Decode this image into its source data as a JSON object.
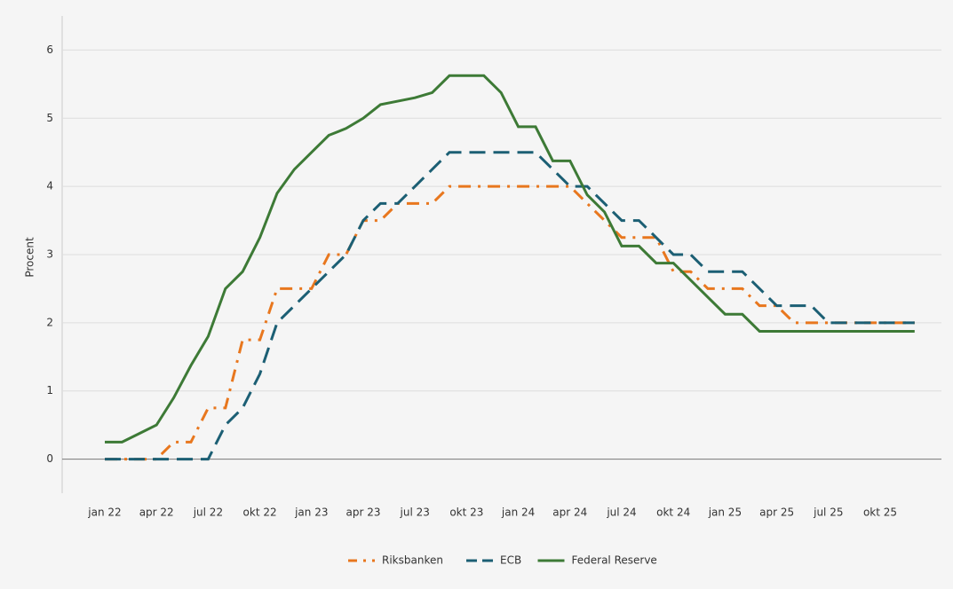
{
  "chart_data": {
    "type": "line",
    "y_label": "Procent",
    "categories": [
      "jan 22",
      null,
      null,
      "apr 22",
      null,
      null,
      "jul 22",
      null,
      null,
      "okt 22",
      null,
      null,
      "jan 23",
      null,
      null,
      "apr 23",
      null,
      null,
      "jul 23",
      null,
      null,
      "okt 23",
      null,
      null,
      "jan 24",
      null,
      null,
      "apr 24",
      null,
      null,
      "jul 24",
      null,
      null,
      "okt 24",
      null,
      null,
      "jan 25",
      null,
      null,
      "apr 25",
      null,
      null,
      "jul 25",
      null,
      null,
      "okt 25",
      null,
      null
    ],
    "series": [
      {
        "name": "Riksbanken",
        "color": "#e8771e",
        "dash": "dashdot",
        "values": [
          0,
          0,
          0,
          0,
          0.25,
          0.25,
          0.75,
          0.75,
          1.75,
          1.75,
          2.5,
          2.5,
          2.5,
          3,
          3,
          3.5,
          3.5,
          3.75,
          3.75,
          3.75,
          4,
          4,
          4,
          4,
          4,
          4,
          4,
          4,
          3.75,
          3.5,
          3.25,
          3.25,
          3.25,
          2.75,
          2.75,
          2.5,
          2.5,
          2.5,
          2.25,
          2.25,
          2,
          2,
          2,
          2,
          2,
          2,
          2,
          2
        ]
      },
      {
        "name": "ECB",
        "color": "#1c5f74",
        "dash": "dashed",
        "values": [
          0,
          0,
          0,
          0,
          0,
          0,
          0,
          0.5,
          0.75,
          1.25,
          2,
          2.25,
          2.5,
          2.75,
          3,
          3.5,
          3.75,
          3.75,
          4,
          4.25,
          4.5,
          4.5,
          4.5,
          4.5,
          4.5,
          4.5,
          4.25,
          4,
          4,
          3.75,
          3.5,
          3.5,
          3.25,
          3,
          3,
          2.75,
          2.75,
          2.75,
          2.5,
          2.25,
          2.25,
          2.25,
          2,
          2,
          2,
          2,
          2,
          2
        ]
      },
      {
        "name": "Federal Reserve",
        "color": "#3d7a36",
        "dash": "solid",
        "values": [
          0.25,
          0.25,
          0.375,
          0.5,
          0.9,
          1.375,
          1.8,
          2.5,
          2.75,
          3.25,
          3.9,
          4.25,
          4.5,
          4.75,
          4.85,
          5,
          5.2,
          5.25,
          5.3,
          5.375,
          5.625,
          5.625,
          5.625,
          5.375,
          4.875,
          4.875,
          4.375,
          4.375,
          3.875,
          3.625,
          3.125,
          3.125,
          2.875,
          2.875,
          2.625,
          2.375,
          2.125,
          2.125,
          1.875,
          1.875,
          1.875,
          1.875,
          1.875,
          1.875,
          1.875,
          1.875,
          1.875,
          1.875
        ]
      }
    ],
    "ylim": [
      -0.5,
      6.5
    ],
    "yticks": [
      0,
      1,
      2,
      3,
      4,
      5,
      6
    ],
    "grid": true,
    "legend": "bottom"
  }
}
